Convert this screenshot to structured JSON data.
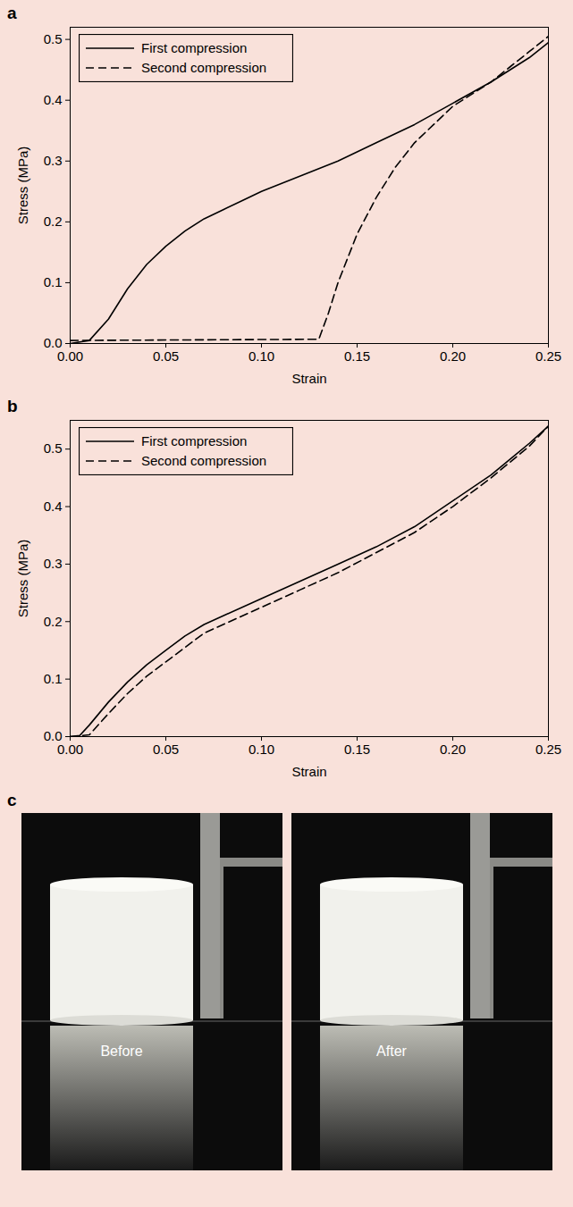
{
  "chart_data": [
    {
      "panel_label": "a",
      "type": "line",
      "x_label": "Strain",
      "y_label": "Stress (MPa)",
      "xlim": [
        0,
        0.25
      ],
      "xticks": [
        {
          "value": 0,
          "label": "0.00"
        },
        0.05,
        {
          "value": 0.1,
          "label": "0.10"
        },
        0.15,
        {
          "value": 0.2,
          "label": "0.20"
        },
        0.25
      ],
      "ylim": [
        0,
        0.52
      ],
      "yticks": [
        {
          "value": 0,
          "label": "0.0"
        },
        0.1,
        0.2,
        0.3,
        0.4,
        0.5
      ],
      "legend": "upper left",
      "series": [
        {
          "name": "First compression",
          "color": "#000000",
          "line_style": "solid",
          "x": [
            0,
            0.01,
            0.02,
            0.03,
            0.04,
            0.05,
            0.06,
            0.07,
            0.08,
            0.09,
            0.1,
            0.12,
            0.14,
            0.16,
            0.18,
            0.2,
            0.22,
            0.24,
            0.25
          ],
          "values": [
            0,
            0.005,
            0.04,
            0.09,
            0.13,
            0.16,
            0.185,
            0.205,
            0.22,
            0.235,
            0.25,
            0.275,
            0.3,
            0.33,
            0.36,
            0.395,
            0.43,
            0.47,
            0.495
          ]
        },
        {
          "name": "Second compression",
          "color": "#000000",
          "line_style": "dashed",
          "x": [
            0,
            0.13,
            0.135,
            0.14,
            0.15,
            0.16,
            0.17,
            0.18,
            0.19,
            0.2,
            0.21,
            0.22,
            0.23,
            0.24,
            0.25
          ],
          "values": [
            0.005,
            0.007,
            0.05,
            0.1,
            0.18,
            0.24,
            0.29,
            0.33,
            0.36,
            0.39,
            0.41,
            0.43,
            0.455,
            0.48,
            0.505
          ]
        }
      ]
    },
    {
      "panel_label": "b",
      "type": "line",
      "x_label": "Strain",
      "y_label": "Stress (MPa)",
      "xlim": [
        0,
        0.25
      ],
      "xticks": [
        {
          "value": 0,
          "label": "0.00"
        },
        0.05,
        {
          "value": 0.1,
          "label": "0.10"
        },
        0.15,
        {
          "value": 0.2,
          "label": "0.20"
        },
        0.25
      ],
      "ylim": [
        0,
        0.55
      ],
      "yticks": [
        {
          "value": 0,
          "label": "0.0"
        },
        0.1,
        0.2,
        0.3,
        0.4,
        0.5
      ],
      "legend": "upper left",
      "series": [
        {
          "name": "First compression",
          "color": "#000000",
          "line_style": "solid",
          "x": [
            0,
            0.005,
            0.01,
            0.02,
            0.03,
            0.04,
            0.05,
            0.06,
            0.07,
            0.08,
            0.1,
            0.12,
            0.14,
            0.16,
            0.18,
            0.2,
            0.22,
            0.24,
            0.25
          ],
          "values": [
            0,
            0.002,
            0.02,
            0.06,
            0.095,
            0.125,
            0.15,
            0.175,
            0.195,
            0.21,
            0.24,
            0.27,
            0.3,
            0.33,
            0.365,
            0.41,
            0.455,
            0.51,
            0.54
          ]
        },
        {
          "name": "Second compression",
          "color": "#000000",
          "line_style": "dashed",
          "x": [
            0,
            0.01,
            0.02,
            0.03,
            0.04,
            0.05,
            0.06,
            0.07,
            0.08,
            0.1,
            0.12,
            0.14,
            0.16,
            0.18,
            0.2,
            0.22,
            0.24,
            0.25
          ],
          "values": [
            0,
            0.003,
            0.04,
            0.075,
            0.105,
            0.13,
            0.155,
            0.18,
            0.195,
            0.225,
            0.255,
            0.285,
            0.32,
            0.355,
            0.4,
            0.45,
            0.505,
            0.54
          ]
        }
      ]
    }
  ],
  "photo_panel": {
    "panel_label": "c",
    "images": [
      {
        "caption": "Before"
      },
      {
        "caption": "After"
      }
    ]
  }
}
